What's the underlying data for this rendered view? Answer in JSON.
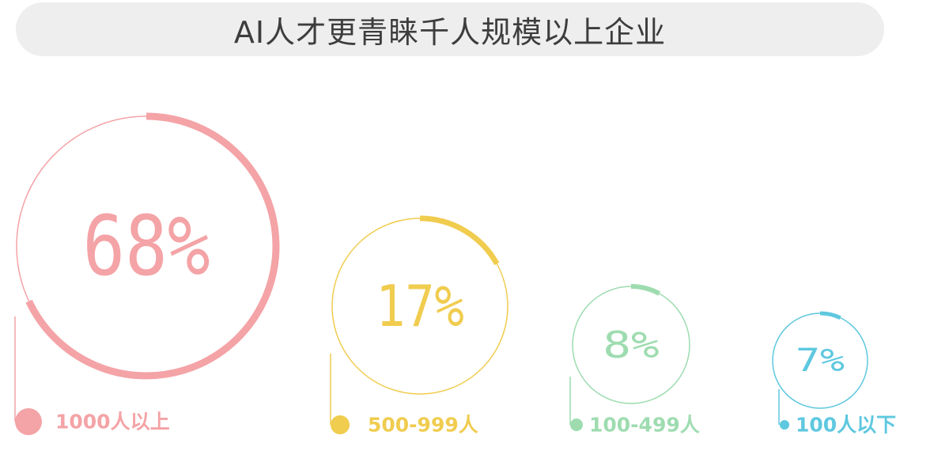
{
  "title": "AI人才更青睐千人规模以上企业",
  "chart_data": {
    "type": "pie",
    "title": "AI人才更青睐千人规模以上企业",
    "categories": [
      "1000人以上",
      "500-999人",
      "100-499人",
      "100人以下"
    ],
    "values": [
      68,
      17,
      8,
      7
    ],
    "labels": [
      "68%",
      "17%",
      "8%",
      "7%"
    ],
    "unit": "%",
    "colors": [
      "#f4a3a6",
      "#f0cc4f",
      "#9edcb0",
      "#5ec8df"
    ],
    "legend": "bottom"
  }
}
